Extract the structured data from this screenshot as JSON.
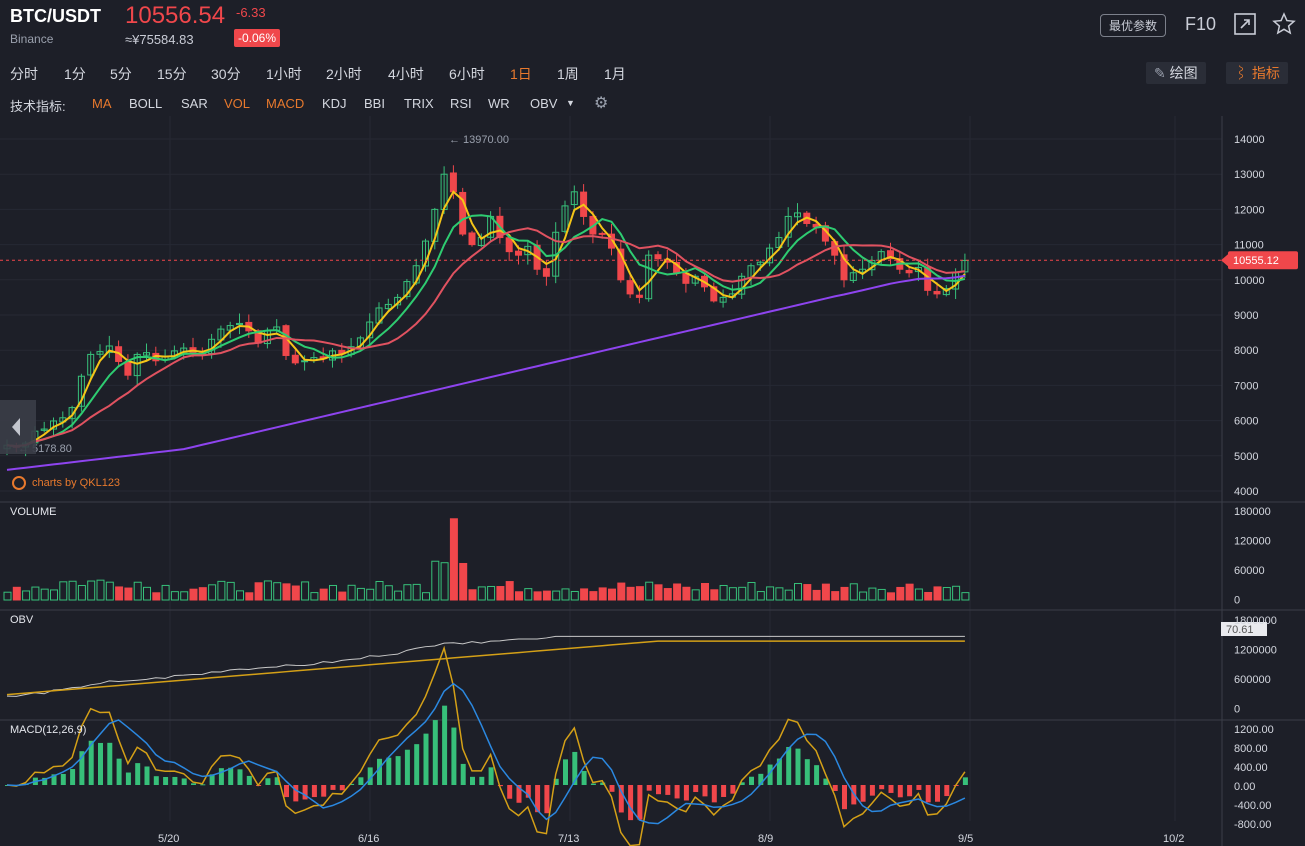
{
  "header": {
    "pair": "BTC/USDT",
    "exchange": "Binance",
    "price": "10556.54",
    "change": "-6.33",
    "cny": "≈¥75584.83",
    "change_pct": "-0.06%",
    "best_params": "最优参数",
    "f10": "F10",
    "icons": [
      "expand-icon",
      "star-icon"
    ]
  },
  "timeframes": [
    "分时",
    "1分",
    "5分",
    "15分",
    "30分",
    "1小时",
    "2小时",
    "4小时",
    "6小时",
    "1日",
    "1周",
    "1月"
  ],
  "active_timeframe": "1日",
  "tools": {
    "draw": "绘图",
    "indicators": "指标"
  },
  "indicators": {
    "label": "技术指标:",
    "items": [
      "MA",
      "BOLL",
      "SAR",
      "VOL",
      "MACD",
      "KDJ",
      "BBI",
      "TRIX",
      "RSI",
      "WR",
      "OBV"
    ],
    "active": [
      "MA",
      "VOL",
      "MACD"
    ]
  },
  "main_chart": {
    "y_ticks": [
      "14000",
      "13000",
      "12000",
      "11000",
      "10000",
      "9000",
      "8000",
      "7000",
      "6000",
      "5000",
      "4000"
    ],
    "high_marker": "13970.00",
    "low_marker": "5178.80",
    "current_price_tag": "10555.12",
    "brand": "charts by QKL123"
  },
  "volume": {
    "title": "VOLUME",
    "y_ticks": [
      "180000",
      "120000",
      "60000",
      "0"
    ]
  },
  "obv": {
    "title": "OBV",
    "y_ticks": [
      "1800000",
      "1200000",
      "600000",
      "0"
    ],
    "tag": "70.61"
  },
  "macd": {
    "title": "MACD(12,26,9)",
    "y_ticks": [
      "1200.00",
      "800.00",
      "400.00",
      "0.00",
      "-400.00",
      "-800.00"
    ]
  },
  "x_labels": [
    "5/20",
    "6/16",
    "7/13",
    "8/9",
    "9/5",
    "10/2"
  ],
  "colors": {
    "up": "#37c07a",
    "down": "#f0474b",
    "ma5": "#f5c518",
    "ma10": "#2ecc71",
    "ma20": "#e05260",
    "ma60": "#8e44ef",
    "accent": "#e8792d"
  },
  "chart_data": {
    "type": "candlestick",
    "y_range": [
      4000,
      14000
    ],
    "close": [
      5300,
      5250,
      5360,
      5700,
      5760,
      5990,
      6080,
      6370,
      7260,
      7880,
      7960,
      8120,
      7680,
      7290,
      7880,
      7930,
      7700,
      7820,
      7980,
      8060,
      7920,
      7880,
      8310,
      8600,
      8700,
      8760,
      8550,
      8200,
      8550,
      8660,
      7850,
      7640,
      7700,
      7790,
      7760,
      7980,
      7900,
      8100,
      8350,
      8800,
      9200,
      9300,
      9500,
      9950,
      10400,
      11100,
      12000,
      13000,
      12500,
      11300,
      11000,
      11200,
      11800,
      11200,
      10800,
      10700,
      10950,
      10300,
      10100,
      11350,
      12100,
      12500,
      11800,
      11300,
      11300,
      10900,
      10000,
      9600,
      9500,
      10700,
      10600,
      10500,
      10200,
      9900,
      10100,
      9800,
      9400,
      9500,
      9600,
      10100,
      10400,
      10500,
      10900,
      11200,
      11800,
      11900,
      11600,
      11500,
      11100,
      10700,
      10000,
      10200,
      10300,
      10550,
      10800,
      10600,
      10300,
      10200,
      10350,
      9700,
      9600,
      9750,
      10200,
      10550
    ]
  }
}
